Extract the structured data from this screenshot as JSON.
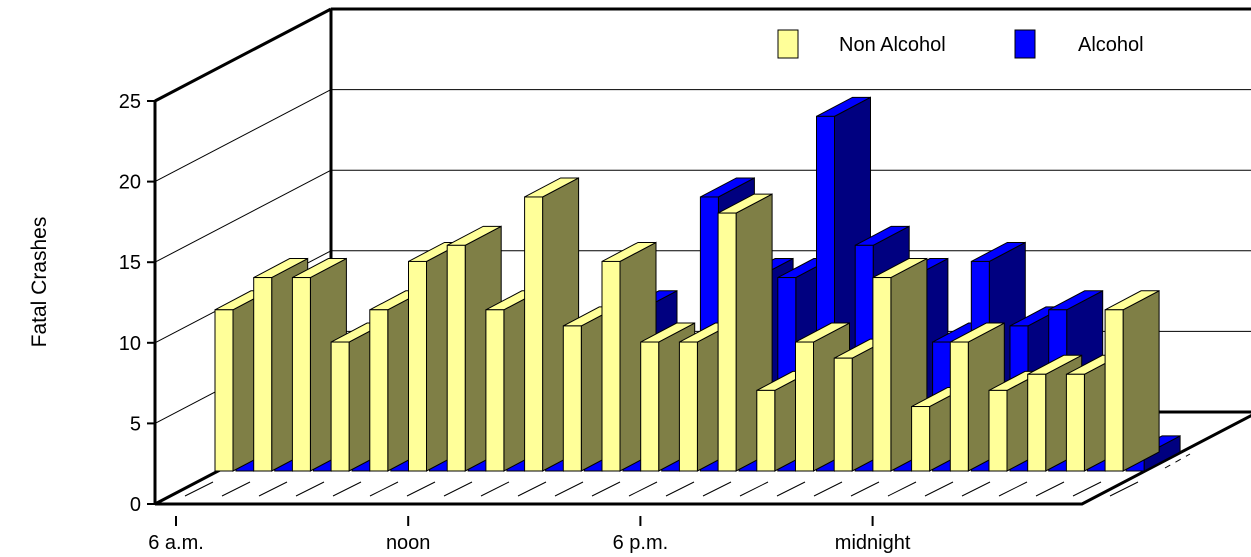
{
  "chart_data": {
    "type": "bar",
    "style": "3d-paired-bars",
    "ylabel": "Fatal Crashes",
    "xlabel": "",
    "ylim": [
      0,
      25
    ],
    "yticks": [
      0,
      5,
      10,
      15,
      20,
      25
    ],
    "x_tick_labels": [
      "6 a.m.",
      "noon",
      "6 p.m.",
      "midnight"
    ],
    "x_tick_slots": [
      0,
      6,
      12,
      18
    ],
    "grid": true,
    "legend_position": "top-right",
    "series": [
      {
        "name": "Non Alcohol",
        "color": "#ffff99",
        "side_color": "#7f7f46",
        "values": [
          10,
          12,
          12,
          8,
          10,
          13,
          14,
          10,
          17,
          9,
          13,
          8,
          8,
          16,
          5,
          8,
          7,
          12,
          4,
          8,
          5,
          6,
          6,
          10
        ]
      },
      {
        "name": "Alcohol",
        "color": "#0000ff",
        "side_color": "#000080",
        "values": [
          3,
          3,
          2,
          1,
          1,
          5,
          8,
          3,
          4,
          7,
          10,
          3,
          17,
          12,
          12,
          22,
          14,
          12,
          8,
          13,
          9,
          10,
          4,
          1
        ]
      }
    ]
  }
}
